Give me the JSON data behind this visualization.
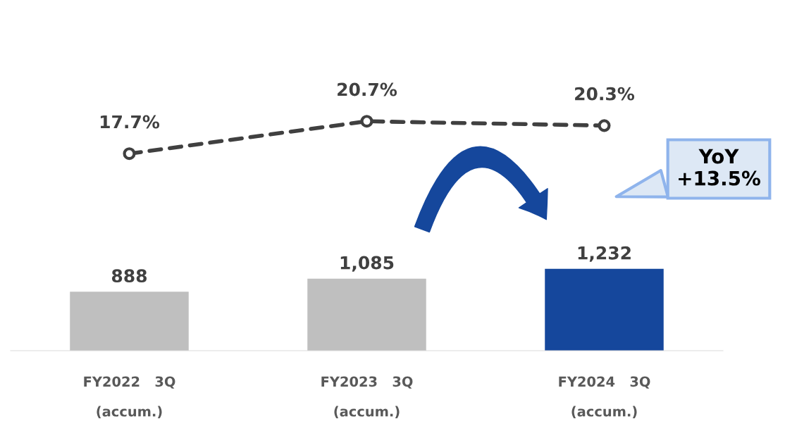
{
  "chart_data": [
    {
      "type": "line",
      "categories": [
        null,
        null,
        null
      ],
      "series": [
        {
          "color": "#404040",
          "values": [
            17.7,
            20.7,
            20.3
          ],
          "value_labels": [
            "17.7%",
            "20.7%",
            "20.3%"
          ]
        }
      ],
      "marker": "circle",
      "line_style": "dashed",
      "legend": false,
      "grid": false
    },
    {
      "type": "bar",
      "categories": [
        "FY2022   3Q\n(accum.)",
        "FY2023   3Q\n(accum.)",
        "FY2024   3Q\n(accum.)"
      ],
      "series": [
        {
          "colors": [
            "#bfbfbf",
            "#bfbfbf",
            "#15479c"
          ],
          "values": [
            888,
            1085,
            1232
          ],
          "value_labels": [
            "888",
            "1,085",
            "1,232"
          ]
        }
      ],
      "annotations": [
        "YoY\n+13.5%"
      ],
      "legend": false,
      "grid": false
    }
  ]
}
